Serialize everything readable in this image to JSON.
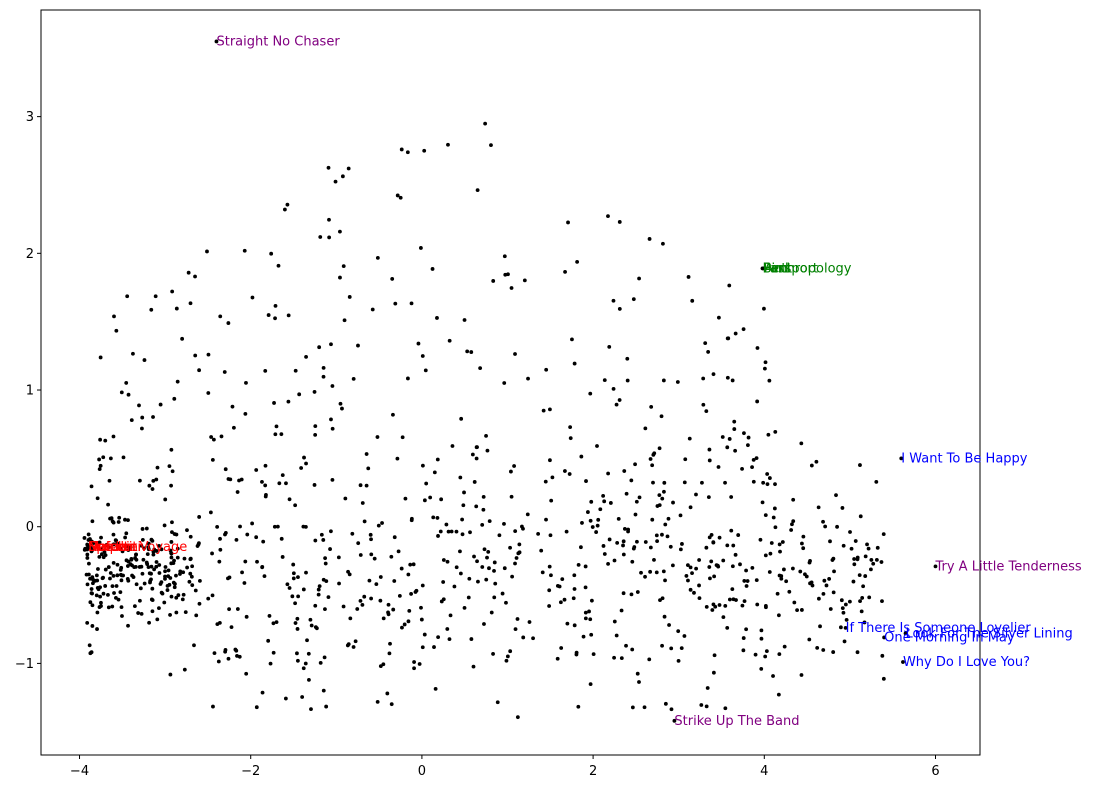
{
  "chart_data": {
    "type": "scatter",
    "title": "",
    "xlabel": "",
    "ylabel": "",
    "xlim": [
      -4.45,
      6.52
    ],
    "ylim": [
      -1.67,
      3.78
    ],
    "xticks": [
      -4,
      -2,
      0,
      2,
      4,
      6
    ],
    "yticks": [
      -1,
      0,
      1,
      2,
      3
    ],
    "grid": false,
    "point_color": "#000000",
    "background_points": {
      "count": 1100,
      "x_range": [
        -3.95,
        5.5
      ],
      "y_range": [
        -1.42,
        3.5
      ],
      "note": "dense cloud of unlabeled points"
    },
    "cluster_points": [
      [
        -3.88,
        -0.15
      ],
      [
        -3.9,
        -0.16
      ],
      [
        -3.87,
        -0.14
      ],
      [
        -3.85,
        -0.17
      ],
      [
        -3.91,
        -0.13
      ],
      [
        -3.86,
        -0.18
      ],
      [
        -3.89,
        -0.15
      ],
      [
        -3.84,
        -0.16
      ],
      [
        -3.92,
        -0.16
      ],
      [
        -3.87,
        -0.13
      ]
    ],
    "annotated_points": [
      {
        "label": "Straight No Chaser",
        "x": -2.4,
        "y": 3.55,
        "color": "#800080"
      },
      {
        "label": "Strike Up The Band",
        "x": 2.95,
        "y": -1.42,
        "color": "#800080"
      },
      {
        "label": "Try A Little Tenderness",
        "x": 6.0,
        "y": -0.29,
        "color": "#800080"
      },
      {
        "label": "I Want To Be Happy",
        "x": 5.6,
        "y": 0.5,
        "color": "#0000ff"
      },
      {
        "label": "If There Is Someone Lovelier",
        "x": 4.95,
        "y": -0.74,
        "color": "#0000ff"
      },
      {
        "label": "Look For The Silver Lining",
        "x": 5.65,
        "y": -0.78,
        "color": "#0000ff"
      },
      {
        "label": "One Morning In May",
        "x": 5.4,
        "y": -0.81,
        "color": "#0000ff"
      },
      {
        "label": "Why Do I Love You?",
        "x": 5.62,
        "y": -0.99,
        "color": "#0000ff"
      },
      {
        "label": "Anthropology",
        "x": 4.0,
        "y": 1.89,
        "color": "#008000"
      },
      {
        "label": "Bird",
        "x": 3.98,
        "y": 1.89,
        "color": "#008000"
      },
      {
        "label": "Pent",
        "x": 3.99,
        "y": 1.89,
        "color": "#008000"
      },
      {
        "label": "Passport",
        "x": 3.98,
        "y": 1.89,
        "color": "#008000"
      },
      {
        "label": "Maiden Voyage",
        "x": -3.9,
        "y": -0.15,
        "color": "#ff0000"
      },
      {
        "label": "Dolphin",
        "x": -3.9,
        "y": -0.15,
        "color": "#ff0000"
      },
      {
        "label": "Sorcerer",
        "x": -3.9,
        "y": -0.15,
        "color": "#ff0000"
      },
      {
        "label": "Speak",
        "x": -3.9,
        "y": -0.15,
        "color": "#ff0000"
      },
      {
        "label": "Nefertiti",
        "x": -3.9,
        "y": -0.15,
        "color": "#ff0000"
      }
    ]
  }
}
